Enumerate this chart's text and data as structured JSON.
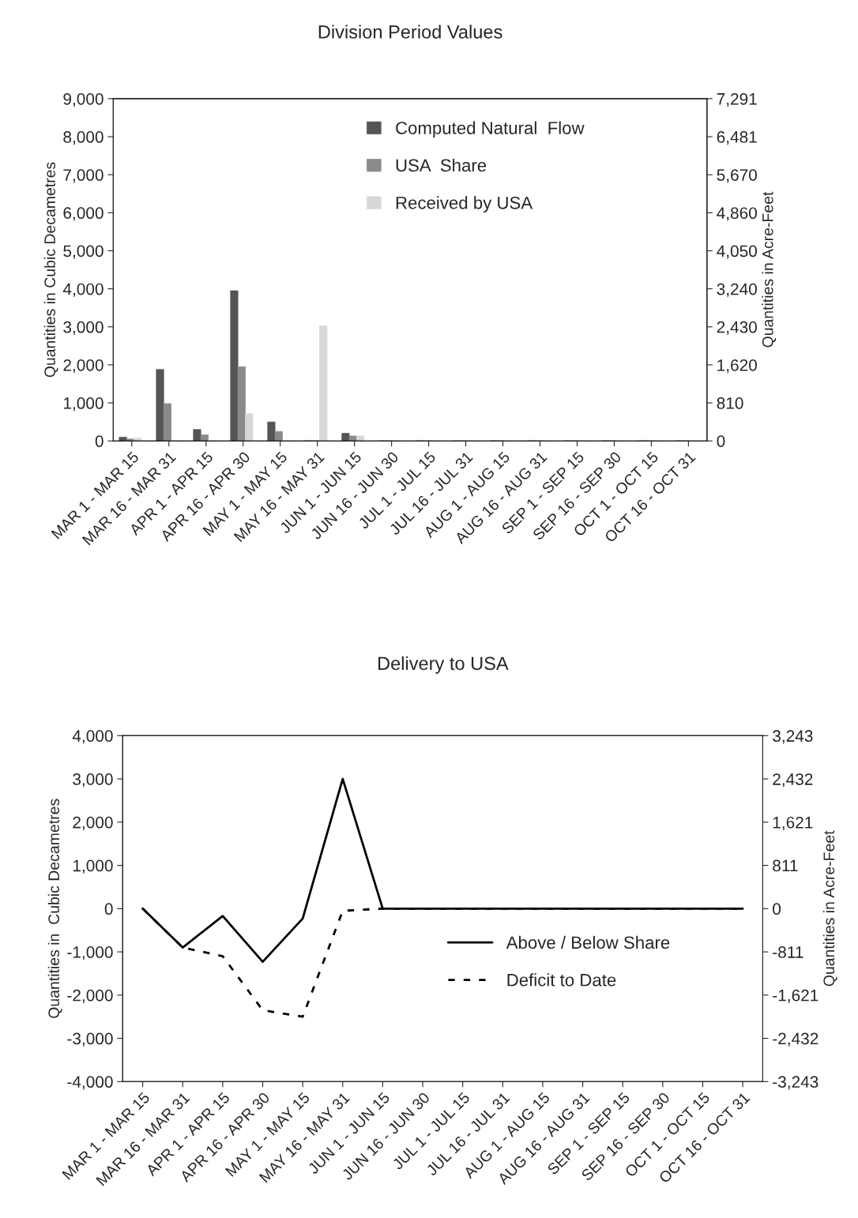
{
  "chart_data": [
    {
      "type": "bar",
      "title": "Division Period Values",
      "ylabel": "Quantities in Cubic Decametres",
      "y2label": "Quantities in Acre-Feet",
      "categories": [
        "MAR 1 - MAR 15",
        "MAR 16 - MAR 31",
        "APR 1 - APR 15",
        "APR 16 - APR 30",
        "MAY 1 - MAY 15",
        "MAY 16 - MAY 31",
        "JUN 1 - JUN 15",
        "JUN 16 - JUN 30",
        "JUL 1 - JUL 15",
        "JUL 16 - JUL 31",
        "AUG 1 - AUG 15",
        "AUG 16 - AUG 31",
        "SEP 1 - SEP 15",
        "SEP 16 - SEP 30",
        "OCT 1 - OCT 15",
        "OCT 16 - OCT 31"
      ],
      "series": [
        {
          "name": "Computed Natural  Flow",
          "color": "#555555",
          "values": [
            100,
            1880,
            300,
            3950,
            500,
            0,
            200,
            0,
            0,
            0,
            0,
            0,
            0,
            0,
            0,
            0
          ]
        },
        {
          "name": "USA  Share",
          "color": "#8a8a8a",
          "values": [
            50,
            980,
            160,
            1950,
            250,
            0,
            130,
            0,
            0,
            0,
            0,
            0,
            0,
            0,
            0,
            0
          ]
        },
        {
          "name": "Received by USA",
          "color": "#d8d8d8",
          "values": [
            70,
            0,
            0,
            720,
            0,
            3020,
            130,
            0,
            0,
            0,
            0,
            0,
            0,
            0,
            0,
            0
          ]
        }
      ],
      "ylim": [
        0,
        9000
      ],
      "yticks": [
        0,
        {
          "value": 1000,
          "label": "1,000"
        },
        {
          "value": 2000,
          "label": "2,000"
        },
        {
          "value": 3000,
          "label": "3,000"
        },
        {
          "value": 4000,
          "label": "4,000"
        },
        {
          "value": 5000,
          "label": "5,000"
        },
        {
          "value": 6000,
          "label": "6,000"
        },
        {
          "value": 7000,
          "label": "7,000"
        },
        {
          "value": 8000,
          "label": "8,000"
        },
        {
          "value": 9000,
          "label": "9,000"
        }
      ],
      "y2lim": [
        0,
        7291
      ],
      "y2ticks": [
        0,
        810,
        {
          "value": 1620,
          "label": "1,620"
        },
        {
          "value": 2430,
          "label": "2,430"
        },
        {
          "value": 3240,
          "label": "3,240"
        },
        {
          "value": 4050,
          "label": "4,050"
        },
        {
          "value": 4860,
          "label": "4,860"
        },
        {
          "value": 5670,
          "label": "5,670"
        },
        {
          "value": 6481,
          "label": "6,481"
        },
        {
          "value": 7291,
          "label": "7,291"
        }
      ],
      "grid": false,
      "legend": "top right"
    },
    {
      "type": "line",
      "title": "Delivery to USA",
      "ylabel": "Quantities in  Cubic Decametres",
      "y2label": "Quantities in Acre-Feet",
      "categories": [
        "MAR 1 - MAR 15",
        "MAR 16 - MAR 31",
        "APR 1 - APR 15",
        "APR 16 - APR 30",
        "MAY 1 - MAY 15",
        "MAY 16 - MAY 31",
        "JUN 1 - JUN 15",
        "JUN 16 - JUN 30",
        "JUL 1 - JUL 15",
        "JUL 16 - JUL 31",
        "AUG 1 - AUG 15",
        "AUG 16 - AUG 31",
        "SEP 1 - SEP 15",
        "SEP 16 - SEP 30",
        "OCT 1 - OCT 15",
        "OCT 16 - OCT 31"
      ],
      "series": [
        {
          "name": "Above / Below Share",
          "color": "#000000",
          "line_style": "solid",
          "values": [
            0,
            -900,
            -170,
            -1230,
            -230,
            3000,
            0,
            0,
            0,
            0,
            0,
            0,
            0,
            0,
            0,
            0
          ]
        },
        {
          "name": "Deficit to Date",
          "color": "#000000",
          "line_style": "dotted",
          "values": [
            0,
            -900,
            -1100,
            -2350,
            -2500,
            -50,
            0,
            0,
            0,
            0,
            0,
            0,
            0,
            0,
            0,
            0
          ]
        }
      ],
      "ylim": [
        -4000,
        4000
      ],
      "yticks": [
        {
          "value": -4000,
          "label": "-4,000"
        },
        {
          "value": -3000,
          "label": "-3,000"
        },
        {
          "value": -2000,
          "label": "-2,000"
        },
        {
          "value": -1000,
          "label": "-1,000"
        },
        0,
        {
          "value": 1000,
          "label": "1,000"
        },
        {
          "value": 2000,
          "label": "2,000"
        },
        {
          "value": 3000,
          "label": "3,000"
        },
        {
          "value": 4000,
          "label": "4,000"
        }
      ],
      "y2lim": [
        -3243,
        3243
      ],
      "y2ticks": [
        {
          "value": -3243,
          "label": "-3,243"
        },
        {
          "value": -2432,
          "label": "-2,432"
        },
        {
          "value": -1621,
          "label": "-1,621"
        },
        {
          "value": -811,
          "label": "-811"
        },
        0,
        811,
        {
          "value": 1621,
          "label": "1,621"
        },
        {
          "value": 2432,
          "label": "2,432"
        },
        {
          "value": 3243,
          "label": "3,243"
        }
      ],
      "grid": false,
      "legend": "bottom right",
      "marker": "none"
    }
  ]
}
